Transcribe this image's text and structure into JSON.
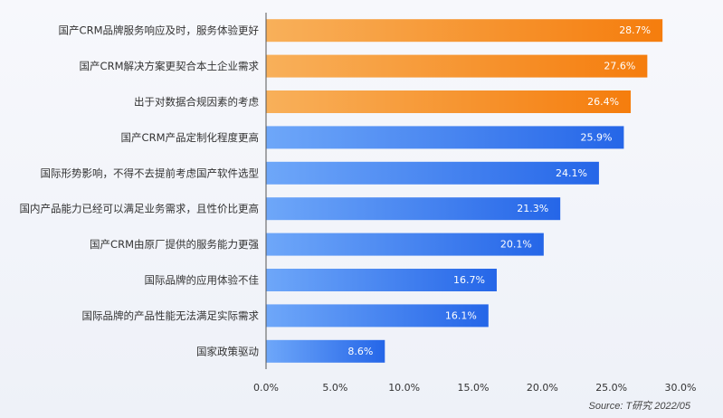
{
  "chart_data": {
    "type": "bar",
    "orientation": "horizontal",
    "categories": [
      "国产CRM品牌服务响应及时，服务体验更好",
      "国产CRM解决方案更契合本土企业需求",
      "出于对数据合规因素的考虑",
      "国产CRM产品定制化程度更高",
      "国际形势影响，不得不去提前考虑国产软件选型",
      "国内产品能力已经可以满足业务需求，且性价比更高",
      "国产CRM由原厂提供的服务能力更强",
      "国际品牌的应用体验不佳",
      "国际品牌的产品性能无法满足实际需求",
      "国家政策驱动"
    ],
    "values": [
      28.7,
      27.6,
      26.4,
      25.9,
      24.1,
      21.3,
      20.1,
      16.7,
      16.1,
      8.6
    ],
    "value_labels": [
      "28.7%",
      "27.6%",
      "26.4%",
      "25.9%",
      "24.1%",
      "21.3%",
      "20.1%",
      "16.7%",
      "16.1%",
      "8.6%"
    ],
    "highlight_count": 3,
    "colors": {
      "highlight_start": "#f8b05a",
      "highlight_end": "#f57d0d",
      "normal_start": "#6ea7f9",
      "normal_end": "#2566e8",
      "axis": "#555555"
    },
    "xlim": [
      0,
      30
    ],
    "xticks": [
      0,
      5,
      10,
      15,
      20,
      25,
      30
    ],
    "xtick_labels": [
      "0.0%",
      "5.0%",
      "10.0%",
      "15.0%",
      "20.0%",
      "25.0%",
      "30.0%"
    ],
    "grid": false,
    "legend": "none"
  },
  "source_text": "Source: T研究 2022/05"
}
